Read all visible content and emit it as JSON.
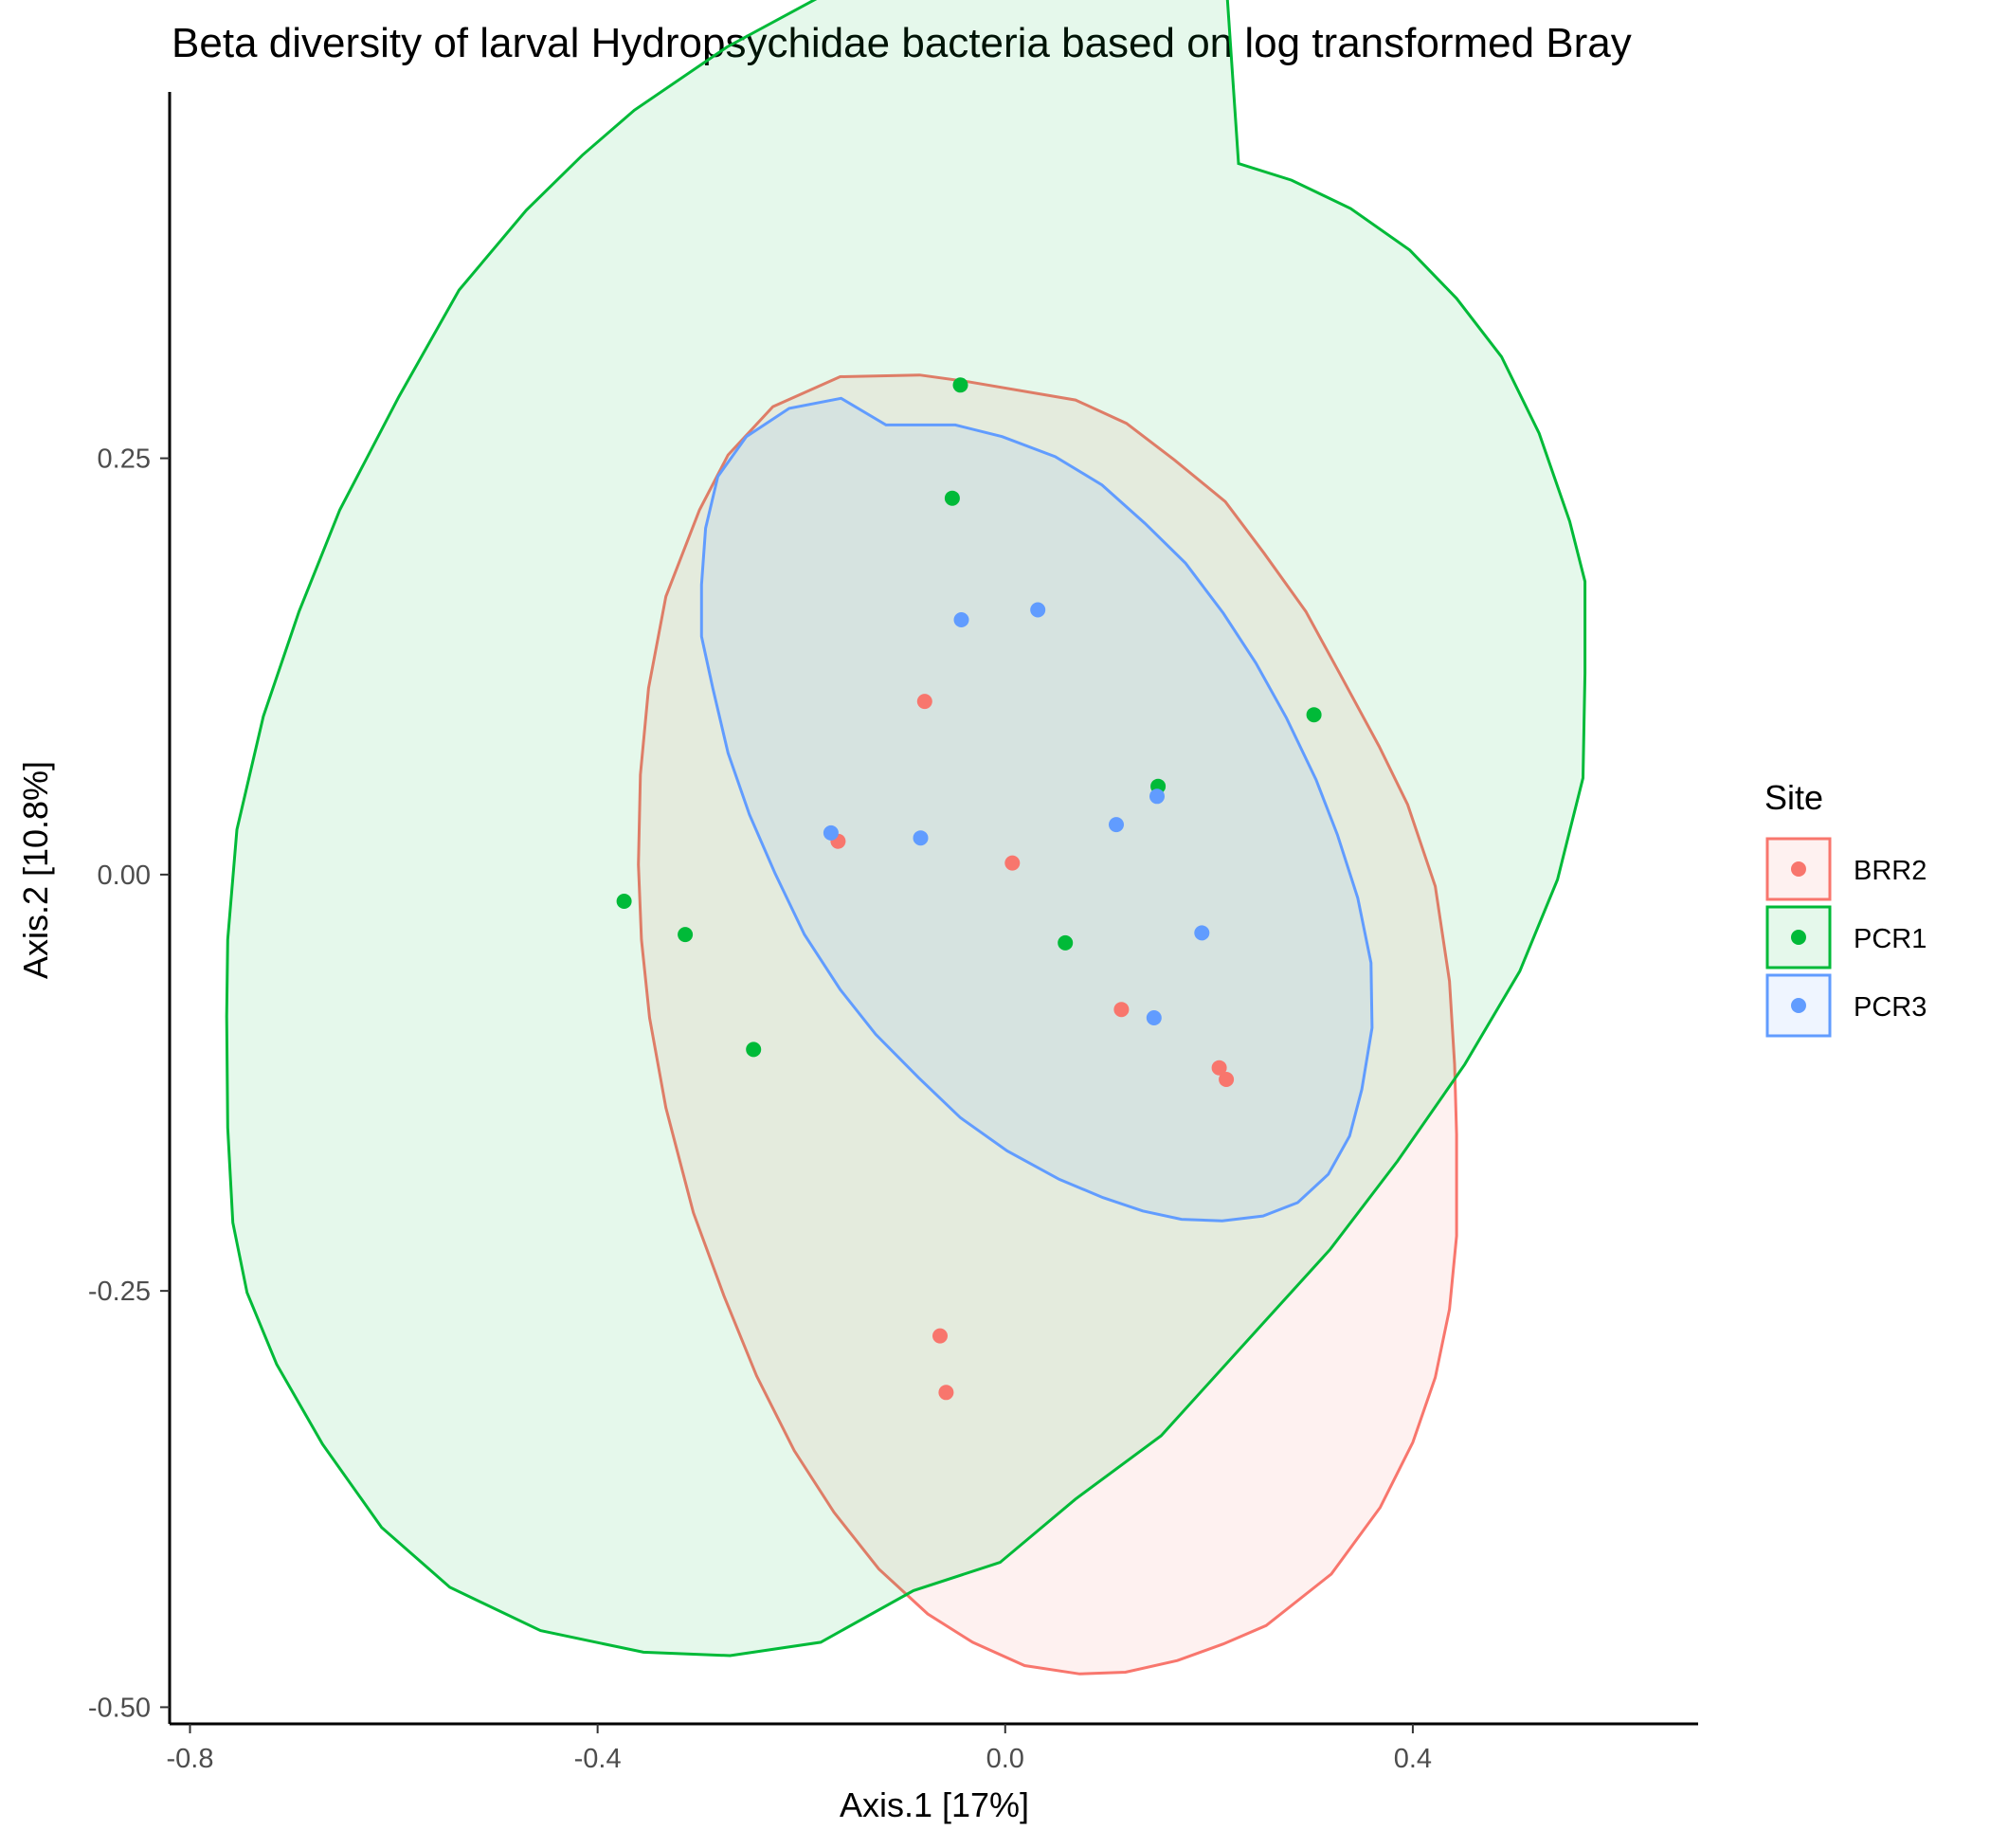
{
  "chart_data": {
    "type": "scatter",
    "title": "Beta diversity of larval Hydropsychidae bacteria based on log transformed Bray",
    "xlabel": "Axis.1   [17%]",
    "ylabel": "Axis.2   [10.8%]",
    "xlim": [
      -0.82,
      0.68
    ],
    "ylim": [
      -0.51,
      0.47
    ],
    "x_ticks": [
      {
        "value": -0.8,
        "label": "-0.8"
      },
      {
        "value": -0.4,
        "label": "-0.4"
      },
      {
        "value": 0.0,
        "label": "0.0"
      },
      {
        "value": 0.4,
        "label": "0.4"
      }
    ],
    "y_ticks": [
      {
        "value": 0.25,
        "label": "0.25"
      },
      {
        "value": 0.0,
        "label": "0.00"
      },
      {
        "value": -0.25,
        "label": "-0.25"
      },
      {
        "value": -0.5,
        "label": "-0.50"
      }
    ],
    "grid": false,
    "legend": {
      "title": "Site",
      "placement": "right"
    },
    "series": [
      {
        "name": "BRR2",
        "color": "#F8766D",
        "points": [
          {
            "x": -0.079,
            "y": 0.104
          },
          {
            "x": -0.164,
            "y": 0.02
          },
          {
            "x": 0.007,
            "y": 0.007
          },
          {
            "x": 0.114,
            "y": -0.081
          },
          {
            "x": 0.21,
            "y": -0.116
          },
          {
            "x": 0.217,
            "y": -0.123
          },
          {
            "x": -0.064,
            "y": -0.277
          },
          {
            "x": -0.058,
            "y": -0.311
          }
        ],
        "ellipse": [
          [
            -0.037,
            0.296
          ],
          [
            0.069,
            0.285
          ],
          [
            0.119,
            0.271
          ],
          [
            0.166,
            0.249
          ],
          [
            0.216,
            0.224
          ],
          [
            0.254,
            0.193
          ],
          [
            0.295,
            0.158
          ],
          [
            0.328,
            0.121
          ],
          [
            0.367,
            0.077
          ],
          [
            0.395,
            0.042
          ],
          [
            0.422,
            -0.007
          ],
          [
            0.436,
            -0.064
          ],
          [
            0.441,
            -0.114
          ],
          [
            0.443,
            -0.156
          ],
          [
            0.443,
            -0.217
          ],
          [
            0.436,
            -0.261
          ],
          [
            0.422,
            -0.302
          ],
          [
            0.4,
            -0.341
          ],
          [
            0.368,
            -0.38
          ],
          [
            0.32,
            -0.42
          ],
          [
            0.256,
            -0.451
          ],
          [
            0.214,
            -0.462
          ],
          [
            0.169,
            -0.472
          ],
          [
            0.118,
            -0.479
          ],
          [
            0.073,
            -0.48
          ],
          [
            0.019,
            -0.475
          ],
          [
            -0.032,
            -0.461
          ],
          [
            -0.076,
            -0.444
          ],
          [
            -0.124,
            -0.417
          ],
          [
            -0.168,
            -0.383
          ],
          [
            -0.207,
            -0.346
          ],
          [
            -0.244,
            -0.301
          ],
          [
            -0.276,
            -0.253
          ],
          [
            -0.306,
            -0.203
          ],
          [
            -0.333,
            -0.14
          ],
          [
            -0.349,
            -0.086
          ],
          [
            -0.357,
            -0.039
          ],
          [
            -0.36,
            0.006
          ],
          [
            -0.358,
            0.06
          ],
          [
            -0.35,
            0.112
          ],
          [
            -0.333,
            0.167
          ],
          [
            -0.3,
            0.219
          ],
          [
            -0.272,
            0.252
          ],
          [
            -0.228,
            0.281
          ],
          [
            -0.162,
            0.299
          ],
          [
            -0.084,
            0.3
          ]
        ]
      },
      {
        "name": "PCR1",
        "color": "#00BA38",
        "points": [
          {
            "x": -0.044,
            "y": 0.294
          },
          {
            "x": -0.052,
            "y": 0.226
          },
          {
            "x": 0.303,
            "y": 0.096
          },
          {
            "x": 0.15,
            "y": 0.053
          },
          {
            "x": -0.374,
            "y": -0.016
          },
          {
            "x": -0.314,
            "y": -0.036
          },
          {
            "x": 0.059,
            "y": -0.041
          },
          {
            "x": -0.247,
            "y": -0.105
          }
        ],
        "ellipse": [
          [
            0.229,
            0.427
          ],
          [
            0.281,
            0.417
          ],
          [
            0.339,
            0.4
          ],
          [
            0.397,
            0.375
          ],
          [
            0.443,
            0.346
          ],
          [
            0.487,
            0.311
          ],
          [
            0.524,
            0.265
          ],
          [
            0.554,
            0.212
          ],
          [
            0.569,
            0.176
          ],
          [
            0.569,
            0.121
          ],
          [
            0.567,
            0.058
          ],
          [
            0.542,
            -0.003
          ],
          [
            0.505,
            -0.058
          ],
          [
            0.451,
            -0.114
          ],
          [
            0.385,
            -0.172
          ],
          [
            0.319,
            -0.225
          ],
          [
            0.233,
            -0.283
          ],
          [
            0.153,
            -0.337
          ],
          [
            0.069,
            -0.375
          ],
          [
            -0.005,
            -0.413
          ],
          [
            -0.09,
            -0.43
          ],
          [
            -0.181,
            -0.461
          ],
          [
            -0.27,
            -0.469
          ],
          [
            -0.355,
            -0.467
          ],
          [
            -0.456,
            -0.454
          ],
          [
            -0.545,
            -0.428
          ],
          [
            -0.612,
            -0.392
          ],
          [
            -0.67,
            -0.342
          ],
          [
            -0.715,
            -0.294
          ],
          [
            -0.744,
            -0.251
          ],
          [
            -0.758,
            -0.209
          ],
          [
            -0.763,
            -0.152
          ],
          [
            -0.764,
            -0.085
          ],
          [
            -0.763,
            -0.039
          ],
          [
            -0.754,
            0.027
          ],
          [
            -0.728,
            0.095
          ],
          [
            -0.693,
            0.158
          ],
          [
            -0.653,
            0.219
          ],
          [
            -0.595,
            0.287
          ],
          [
            -0.536,
            0.351
          ],
          [
            -0.47,
            0.399
          ],
          [
            -0.415,
            0.432
          ],
          [
            -0.364,
            0.459
          ],
          [
            -0.273,
            0.497
          ],
          [
            -0.17,
            0.531
          ],
          [
            -0.059,
            0.569
          ],
          [
            0.066,
            0.6
          ],
          [
            0.135,
            0.614
          ],
          [
            0.208,
            0.617
          ]
        ]
      },
      {
        "name": "PCR3",
        "color": "#619CFF",
        "points": [
          {
            "x": 0.032,
            "y": 0.159
          },
          {
            "x": -0.043,
            "y": 0.153
          },
          {
            "x": -0.171,
            "y": 0.025
          },
          {
            "x": -0.083,
            "y": 0.022
          },
          {
            "x": 0.109,
            "y": 0.03
          },
          {
            "x": 0.149,
            "y": 0.047
          },
          {
            "x": 0.193,
            "y": -0.035
          },
          {
            "x": 0.146,
            "y": -0.086
          }
        ],
        "ellipse": [
          [
            -0.117,
            0.27
          ],
          [
            -0.049,
            0.27
          ],
          [
            -0.003,
            0.263
          ],
          [
            0.049,
            0.251
          ],
          [
            0.095,
            0.234
          ],
          [
            0.137,
            0.211
          ],
          [
            0.177,
            0.187
          ],
          [
            0.214,
            0.157
          ],
          [
            0.246,
            0.127
          ],
          [
            0.276,
            0.094
          ],
          [
            0.305,
            0.057
          ],
          [
            0.326,
            0.024
          ],
          [
            0.346,
            -0.014
          ],
          [
            0.359,
            -0.053
          ],
          [
            0.36,
            -0.092
          ],
          [
            0.35,
            -0.129
          ],
          [
            0.338,
            -0.157
          ],
          [
            0.317,
            -0.18
          ],
          [
            0.287,
            -0.197
          ],
          [
            0.253,
            -0.205
          ],
          [
            0.213,
            -0.208
          ],
          [
            0.173,
            -0.207
          ],
          [
            0.135,
            -0.202
          ],
          [
            0.096,
            -0.194
          ],
          [
            0.053,
            -0.183
          ],
          [
            0.002,
            -0.166
          ],
          [
            -0.044,
            -0.146
          ],
          [
            -0.085,
            -0.122
          ],
          [
            -0.127,
            -0.096
          ],
          [
            -0.162,
            -0.069
          ],
          [
            -0.197,
            -0.036
          ],
          [
            -0.226,
            0.001
          ],
          [
            -0.251,
            0.036
          ],
          [
            -0.272,
            0.073
          ],
          [
            -0.287,
            0.112
          ],
          [
            -0.298,
            0.143
          ],
          [
            -0.298,
            0.174
          ],
          [
            -0.294,
            0.208
          ],
          [
            -0.282,
            0.239
          ],
          [
            -0.254,
            0.263
          ],
          [
            -0.212,
            0.28
          ],
          [
            -0.161,
            0.286
          ]
        ]
      }
    ]
  }
}
